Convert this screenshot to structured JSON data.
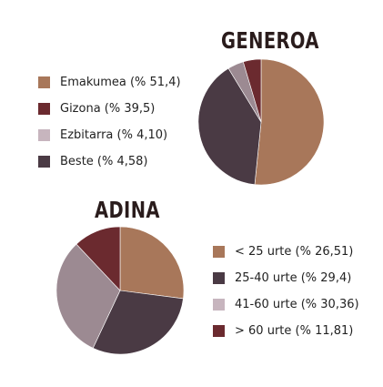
{
  "chart_data": [
    {
      "type": "pie",
      "title": "GENEROA",
      "legend_position": "left",
      "slices": [
        {
          "label": "Emakumea (% 51,4)",
          "value": 51.4,
          "color": "#a8775a"
        },
        {
          "label": "Gizona (% 39,5)",
          "value": 39.5,
          "color": "#6b2a2f"
        },
        {
          "label": "Ezbitarra (% 4,10)",
          "value": 4.1,
          "color": "#c7b5be"
        },
        {
          "label": "Beste (% 4,58)",
          "value": 4.58,
          "color": "#4a3a44"
        }
      ],
      "drawn_slices_order": [
        {
          "ref": 0,
          "color": "#a8775a"
        },
        {
          "ref": 1,
          "color": "#4a3a44"
        },
        {
          "ref": 2,
          "color": "#9c8a92"
        },
        {
          "ref": 3,
          "color": "#6b2a2f"
        }
      ]
    },
    {
      "type": "pie",
      "title": "ADINA",
      "legend_position": "right",
      "slices": [
        {
          "label": "< 25 urte (% 26,51)",
          "value": 26.51,
          "color": "#a8775a"
        },
        {
          "label": "25-40 urte (% 29,4)",
          "value": 29.4,
          "color": "#4a3a44"
        },
        {
          "label": "41-60 urte (% 30,36)",
          "value": 30.36,
          "color": "#c7b5be"
        },
        {
          "label": "> 60 urte (% 11,81)",
          "value": 11.81,
          "color": "#6b2a2f"
        }
      ],
      "drawn_slices_order": [
        {
          "ref": 0,
          "color": "#a8775a"
        },
        {
          "ref": 1,
          "color": "#4a3a44"
        },
        {
          "ref": 2,
          "color": "#9c8a92"
        },
        {
          "ref": 3,
          "color": "#6b2a2f"
        }
      ]
    }
  ]
}
